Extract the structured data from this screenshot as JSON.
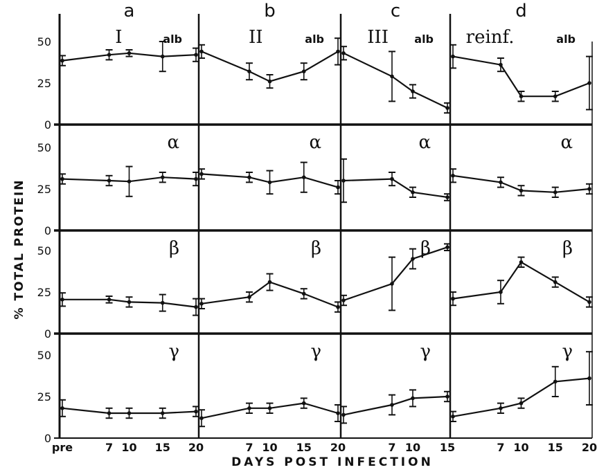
{
  "chart_data": {
    "type": "line",
    "ylabel": "% TOTAL PROTEIN",
    "xlabel": "DAYS POST INFECTION",
    "ylim": [
      0,
      62
    ],
    "y_ticks": [
      0,
      25,
      50
    ],
    "columns": [
      {
        "letter": "a",
        "roman": "I",
        "ticks": [
          {
            "day": 0,
            "label": "pre"
          },
          {
            "day": 7,
            "label": "7"
          },
          {
            "day": 10,
            "label": "10"
          },
          {
            "day": 15,
            "label": "15"
          },
          {
            "day": 20,
            "label": "20"
          }
        ]
      },
      {
        "letter": "b",
        "roman": "II",
        "ticks": [
          {
            "day": 7,
            "label": "7"
          },
          {
            "day": 10,
            "label": "10"
          },
          {
            "day": 15,
            "label": "15"
          },
          {
            "day": 20,
            "label": "20"
          }
        ]
      },
      {
        "letter": "c",
        "roman": "III",
        "ticks": [
          {
            "day": 7,
            "label": "7"
          },
          {
            "day": 10,
            "label": "10"
          },
          {
            "day": 15,
            "label": "15"
          }
        ]
      },
      {
        "letter": "d",
        "roman": "reinf.",
        "ticks": [
          {
            "day": 7,
            "label": "7"
          },
          {
            "day": 10,
            "label": "10"
          },
          {
            "day": 15,
            "label": "15"
          },
          {
            "day": 20,
            "label": "20"
          }
        ]
      }
    ],
    "rows": [
      {
        "name": "alb",
        "series": [
          {
            "x": [
              0,
              7,
              10,
              15,
              20
            ],
            "y": [
              38.5,
              42,
              43,
              41,
              42
            ],
            "err": [
              3,
              3,
              2,
              9,
              4
            ]
          },
          {
            "x": [
              0,
              7,
              10,
              15,
              20
            ],
            "y": [
              44,
              32,
              26,
              32,
              44
            ],
            "err": [
              4,
              5,
              4,
              5,
              8
            ]
          },
          {
            "x": [
              0,
              7,
              10,
              15
            ],
            "y": [
              43,
              29,
              20,
              10
            ],
            "err": [
              4,
              15,
              4,
              3
            ]
          },
          {
            "x": [
              0,
              7,
              10,
              15,
              20
            ],
            "y": [
              41,
              36,
              17,
              17,
              25
            ],
            "err": [
              7,
              4,
              3,
              3,
              16
            ]
          }
        ]
      },
      {
        "name": "α",
        "series": [
          {
            "x": [
              0,
              7,
              10,
              15,
              20
            ],
            "y": [
              31,
              30,
              29.5,
              32,
              31
            ],
            "err": [
              3,
              3,
              9,
              3,
              4
            ]
          },
          {
            "x": [
              0,
              7,
              10,
              15,
              20
            ],
            "y": [
              34,
              32,
              29,
              32,
              26
            ],
            "err": [
              3,
              3,
              7,
              9,
              4
            ]
          },
          {
            "x": [
              0,
              7,
              10,
              15
            ],
            "y": [
              30,
              31,
              23,
              20
            ],
            "err": [
              13,
              4,
              3,
              2
            ]
          },
          {
            "x": [
              0,
              7,
              10,
              15,
              20
            ],
            "y": [
              33,
              29,
              24,
              23,
              25
            ],
            "err": [
              4,
              3,
              3,
              3,
              3
            ]
          }
        ]
      },
      {
        "name": "β",
        "series": [
          {
            "x": [
              0,
              7,
              10,
              15,
              20
            ],
            "y": [
              20.5,
              20.5,
              19,
              18.5,
              16
            ],
            "err": [
              4,
              2,
              3,
              5,
              5
            ]
          },
          {
            "x": [
              0,
              7,
              10,
              15,
              20
            ],
            "y": [
              18,
              22,
              31,
              24,
              16
            ],
            "err": [
              3,
              3,
              5,
              3,
              3
            ]
          },
          {
            "x": [
              0,
              7,
              10,
              15
            ],
            "y": [
              20,
              30,
              45,
              52
            ],
            "err": [
              3,
              16,
              6,
              2
            ]
          },
          {
            "x": [
              0,
              7,
              10,
              15,
              20
            ],
            "y": [
              21,
              25,
              43,
              31,
              19
            ],
            "err": [
              4,
              7,
              3,
              3,
              3
            ]
          }
        ]
      },
      {
        "name": "γ",
        "series": [
          {
            "x": [
              0,
              7,
              10,
              15,
              20
            ],
            "y": [
              18,
              15,
              15,
              15,
              16
            ],
            "err": [
              5,
              3,
              3,
              3,
              3
            ]
          },
          {
            "x": [
              0,
              7,
              10,
              15,
              20
            ],
            "y": [
              12,
              18,
              18,
              21,
              15
            ],
            "err": [
              5,
              3,
              3,
              3,
              5
            ]
          },
          {
            "x": [
              0,
              7,
              10,
              15
            ],
            "y": [
              14,
              20,
              24,
              25
            ],
            "err": [
              5,
              6,
              5,
              3
            ]
          },
          {
            "x": [
              0,
              7,
              10,
              15,
              20
            ],
            "y": [
              13,
              18,
              21,
              34,
              36
            ],
            "err": [
              3,
              3,
              3,
              9,
              16
            ]
          }
        ]
      }
    ]
  }
}
